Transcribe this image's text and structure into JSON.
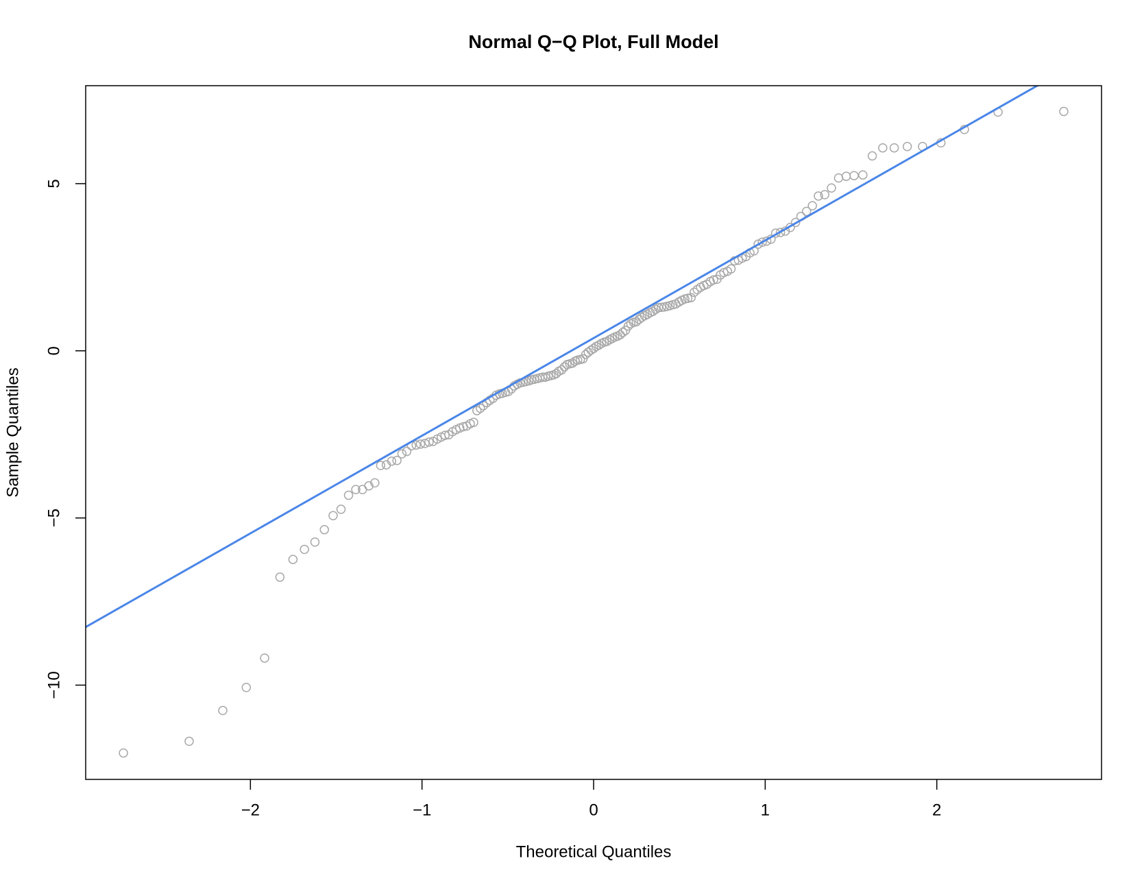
{
  "chart_data": {
    "type": "scatter",
    "title": "Normal Q−Q Plot, Full Model",
    "x_label": "Theoretical Quantiles",
    "y_label": "Sample Quantiles",
    "xlim": [
      -2.96,
      2.96
    ],
    "ylim": [
      -12.82,
      7.93
    ],
    "xticks": [
      {
        "value": -2,
        "label": "−2"
      },
      {
        "value": -1,
        "label": "−1"
      },
      0,
      1,
      2
    ],
    "yticks": [
      {
        "value": -10,
        "label": "−10"
      },
      {
        "value": -5,
        "label": "−5"
      },
      0,
      5
    ],
    "grid": false,
    "color": "#a8a8a8",
    "reference_line": {
      "intercept": 0.38,
      "slope": 2.92,
      "color": "#4a86e8"
    },
    "x": [
      -2.74,
      -2.357,
      -2.161,
      -2.024,
      -1.917,
      -1.828,
      -1.752,
      -1.685,
      -1.624,
      -1.569,
      -1.518,
      -1.472,
      -1.428,
      -1.386,
      -1.347,
      -1.31,
      -1.275,
      -1.241,
      -1.208,
      -1.177,
      -1.146,
      -1.117,
      -1.089,
      -1.061,
      -1.034,
      -1.009,
      -0.983,
      -0.959,
      -0.935,
      -0.911,
      -0.888,
      -0.866,
      -0.844,
      -0.822,
      -0.801,
      -0.78,
      -0.759,
      -0.739,
      -0.719,
      -0.699,
      -0.68,
      -0.66,
      -0.642,
      -0.623,
      -0.604,
      -0.586,
      -0.568,
      -0.549,
      -0.532,
      -0.514,
      -0.497,
      -0.479,
      -0.462,
      -0.445,
      -0.428,
      -0.411,
      -0.395,
      -0.378,
      -0.362,
      -0.345,
      -0.329,
      -0.313,
      -0.297,
      -0.281,
      -0.265,
      -0.249,
      -0.233,
      -0.217,
      -0.202,
      -0.186,
      -0.17,
      -0.155,
      -0.139,
      -0.123,
      -0.108,
      -0.093,
      -0.077,
      -0.062,
      -0.046,
      -0.031,
      -0.015,
      0,
      0.015,
      0.031,
      0.046,
      0.062,
      0.077,
      0.093,
      0.108,
      0.123,
      0.139,
      0.155,
      0.17,
      0.186,
      0.202,
      0.217,
      0.233,
      0.249,
      0.265,
      0.281,
      0.297,
      0.313,
      0.329,
      0.345,
      0.362,
      0.378,
      0.395,
      0.411,
      0.428,
      0.445,
      0.462,
      0.479,
      0.497,
      0.514,
      0.532,
      0.549,
      0.568,
      0.586,
      0.604,
      0.623,
      0.642,
      0.66,
      0.68,
      0.699,
      0.719,
      0.739,
      0.759,
      0.78,
      0.801,
      0.822,
      0.844,
      0.866,
      0.888,
      0.911,
      0.935,
      0.959,
      0.983,
      1.009,
      1.034,
      1.061,
      1.089,
      1.117,
      1.146,
      1.177,
      1.208,
      1.241,
      1.275,
      1.31,
      1.347,
      1.386,
      1.428,
      1.472,
      1.518,
      1.569,
      1.624,
      1.685,
      1.752,
      1.828,
      1.917,
      2.024,
      2.161,
      2.357,
      2.74
    ],
    "values": [
      -12.03,
      -11.68,
      -10.76,
      -10.07,
      -9.19,
      -6.77,
      -6.24,
      -5.94,
      -5.72,
      -5.35,
      -4.93,
      -4.74,
      -4.32,
      -4.15,
      -4.15,
      -4.04,
      -3.95,
      -3.43,
      -3.41,
      -3.3,
      -3.28,
      -3.08,
      -3.01,
      -2.84,
      -2.82,
      -2.79,
      -2.77,
      -2.73,
      -2.71,
      -2.64,
      -2.58,
      -2.53,
      -2.51,
      -2.42,
      -2.36,
      -2.31,
      -2.27,
      -2.25,
      -2.18,
      -2.14,
      -1.79,
      -1.72,
      -1.64,
      -1.55,
      -1.48,
      -1.42,
      -1.33,
      -1.29,
      -1.27,
      -1.24,
      -1.22,
      -1.14,
      -1.05,
      -1.0,
      -0.96,
      -0.94,
      -0.92,
      -0.9,
      -0.87,
      -0.85,
      -0.83,
      -0.81,
      -0.79,
      -0.79,
      -0.76,
      -0.74,
      -0.72,
      -0.68,
      -0.61,
      -0.57,
      -0.48,
      -0.41,
      -0.39,
      -0.37,
      -0.31,
      -0.28,
      -0.26,
      -0.24,
      -0.11,
      -0.04,
      0.02,
      0.07,
      0.13,
      0.17,
      0.22,
      0.26,
      0.28,
      0.33,
      0.37,
      0.41,
      0.44,
      0.48,
      0.55,
      0.61,
      0.74,
      0.81,
      0.85,
      0.87,
      0.94,
      1.0,
      1.05,
      1.09,
      1.14,
      1.18,
      1.24,
      1.29,
      1.3,
      1.31,
      1.33,
      1.35,
      1.38,
      1.4,
      1.46,
      1.51,
      1.55,
      1.57,
      1.59,
      1.75,
      1.83,
      1.9,
      1.95,
      1.99,
      2.07,
      2.12,
      2.14,
      2.27,
      2.34,
      2.38,
      2.45,
      2.69,
      2.71,
      2.77,
      2.82,
      2.93,
      2.99,
      3.19,
      3.25,
      3.28,
      3.34,
      3.52,
      3.54,
      3.58,
      3.69,
      3.84,
      4.02,
      4.17,
      4.34,
      4.63,
      4.67,
      4.87,
      5.17,
      5.22,
      5.24,
      5.26,
      5.83,
      6.07,
      6.07,
      6.11,
      6.11,
      6.22,
      6.62,
      7.14,
      7.16
    ]
  }
}
